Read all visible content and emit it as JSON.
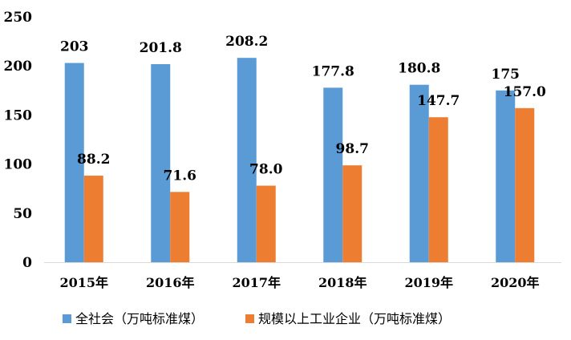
{
  "chart_data": {
    "type": "bar",
    "categories": [
      "2015年",
      "2016年",
      "2017年",
      "2018年",
      "2019年",
      "2020年"
    ],
    "series": [
      {
        "name": "全社会（万吨标准煤）",
        "values": [
          203,
          201.8,
          208.2,
          177.8,
          180.8,
          175
        ],
        "labels": [
          "203",
          "201.8",
          "208.2",
          "177.8",
          "180.8",
          "175"
        ],
        "color": "#5b9bd5"
      },
      {
        "name": "规模以上工业企业（万吨标准煤）",
        "values": [
          88.2,
          71.6,
          78.0,
          98.7,
          147.7,
          157.0
        ],
        "labels": [
          "88.2",
          "71.6",
          "78.0",
          "98.7",
          "147.7",
          "157.0"
        ],
        "color": "#ed7d31"
      }
    ],
    "ylim": [
      0,
      250
    ],
    "yticks": [
      "0",
      "50",
      "100",
      "150",
      "200",
      "250"
    ],
    "grid": false,
    "legend": "bottom",
    "title": "",
    "xlabel": "",
    "ylabel": ""
  }
}
